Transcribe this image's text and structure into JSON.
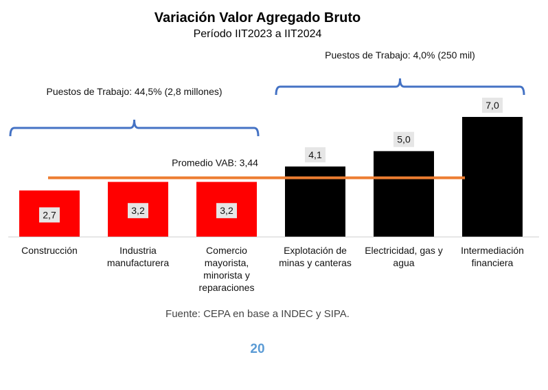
{
  "chart_data": {
    "type": "bar",
    "title": "Variación Valor Agregado Bruto",
    "subtitle": "Período IIT2023 a IIT2024",
    "categories": [
      [
        "Construcción"
      ],
      [
        "Industria",
        "manufacturera"
      ],
      [
        "Comercio",
        "mayorista,",
        "minorista y",
        "reparaciones"
      ],
      [
        "Explotación de",
        "minas y canteras"
      ],
      [
        "Electricidad, gas y",
        "agua"
      ],
      [
        "Intermediación",
        "financiera"
      ]
    ],
    "values": [
      2.7,
      3.2,
      3.2,
      4.1,
      5.0,
      7.0
    ],
    "value_labels": [
      "2,7",
      "3,2",
      "3,2",
      "4,1",
      "5,0",
      "7,0"
    ],
    "bar_colors": [
      "#ff0000",
      "#ff0000",
      "#ff0000",
      "#000000",
      "#000000",
      "#000000"
    ],
    "ylim": [
      0,
      7.5
    ],
    "grid": false,
    "reference_line": {
      "label": "Promedio VAB: 3,44",
      "value": 3.44,
      "color": "#ed7d31"
    },
    "groups": [
      {
        "label": "Puestos de Trabajo: 44,5% (2,8 millones)",
        "from": 0,
        "to": 2,
        "color": "#4472c4"
      },
      {
        "label": "Puestos de Trabajo: 4,0% (250 mil)",
        "from": 3,
        "to": 5,
        "color": "#4472c4"
      }
    ]
  },
  "footer": {
    "source": "Fuente: CEPA en base a INDEC y SIPA.",
    "page_number": "20"
  }
}
